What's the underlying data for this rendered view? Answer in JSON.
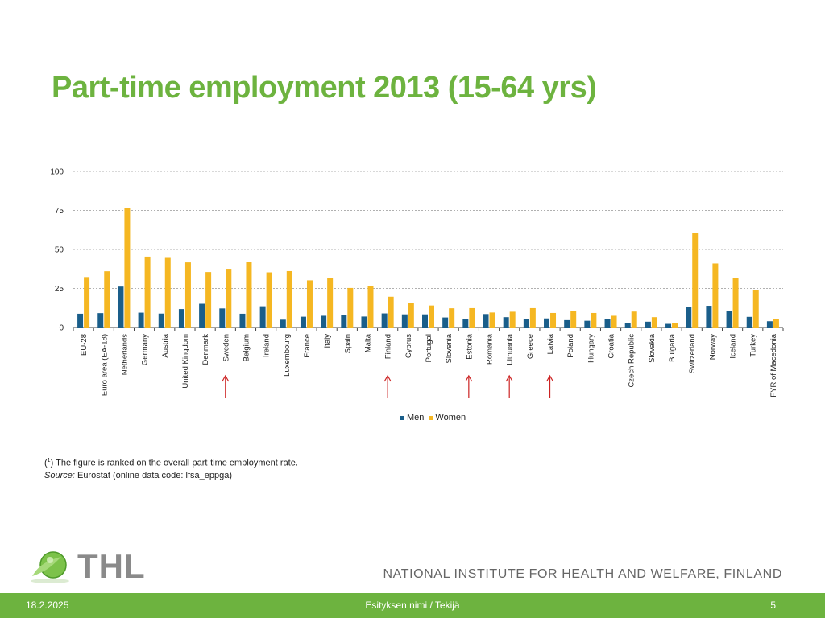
{
  "slide": {
    "title": "Part-time employment 2013 (15-64 yrs)",
    "title_color": "#6db33f"
  },
  "chart_data": {
    "type": "bar",
    "categories": [
      "EU-28",
      "Euro area (EA-18)",
      "Netherlands",
      "Germany",
      "Austria",
      "United Kingdom",
      "Denmark",
      "Sweden",
      "Belgium",
      "Ireland",
      "Luxembourg",
      "France",
      "Italy",
      "Spain",
      "Malta",
      "Finland",
      "Cyprus",
      "Portugal",
      "Slovenia",
      "Estonia",
      "Romania",
      "Lithuania",
      "Greece",
      "Latvia",
      "Poland",
      "Hungary",
      "Croatia",
      "Czech Republic",
      "Slovakia",
      "Bulgaria",
      "Switzerland",
      "Norway",
      "Iceland",
      "Turkey",
      "FYR of Macedonia"
    ],
    "series": [
      {
        "name": "Men",
        "color": "#1a5e8a",
        "values": [
          8.8,
          9.2,
          26.2,
          9.5,
          8.9,
          11.8,
          15.2,
          12.2,
          8.8,
          13.6,
          5.0,
          6.9,
          7.5,
          7.8,
          7.0,
          9.0,
          8.4,
          8.4,
          6.4,
          5.3,
          8.6,
          6.6,
          5.4,
          5.8,
          4.7,
          4.3,
          5.5,
          2.8,
          3.7,
          2.3,
          13.1,
          13.9,
          10.6,
          6.8,
          4.0
        ]
      },
      {
        "name": "Women",
        "color": "#f5b722",
        "values": [
          32.3,
          36.0,
          76.6,
          45.4,
          45.1,
          41.7,
          35.5,
          37.6,
          42.2,
          35.3,
          36.1,
          30.2,
          31.9,
          25.3,
          26.7,
          19.7,
          15.6,
          14.1,
          12.3,
          12.4,
          9.6,
          10.1,
          12.4,
          9.3,
          10.5,
          9.3,
          7.5,
          10.2,
          6.6,
          2.9,
          60.5,
          41.0,
          31.8,
          24.2,
          5.2
        ]
      }
    ],
    "yticks": [
      0,
      25,
      50,
      75,
      100
    ],
    "ylim": [
      0,
      100
    ],
    "grid": true,
    "legend_position": "bottom-center",
    "highlight_arrows": [
      "Sweden",
      "Finland",
      "Estonia",
      "Lithuania",
      "Latvia"
    ],
    "arrow_color": "#cc2222"
  },
  "footnote": {
    "marker": "1",
    "note": " The figure is ranked on the overall part-time employment rate.",
    "source_label": "Source:",
    "source_text": " Eurostat (online data code: lfsa_eppga)"
  },
  "branding": {
    "logo_text": "THL",
    "institute_name": "NATIONAL INSTITUTE FOR HEALTH AND WELFARE, FINLAND"
  },
  "footer": {
    "date": "18.2.2025",
    "center_text": "Esityksen nimi / Tekijä",
    "page_number": "5",
    "bar_color": "#6db33f"
  }
}
